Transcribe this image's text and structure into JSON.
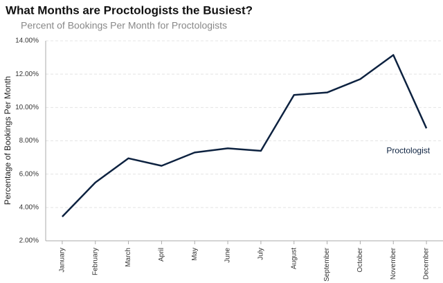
{
  "chart_data": {
    "type": "line",
    "title": "What Months are Proctologists the Busiest?",
    "subtitle": "Percent of Bookings Per Month for Proctologists",
    "y_label": "Percentage of Bookings Per Month",
    "categories": [
      "January",
      "February",
      "March",
      "April",
      "May",
      "June",
      "July",
      "August",
      "September",
      "October",
      "November",
      "December"
    ],
    "series": [
      {
        "name": "Proctologist",
        "color": "#0d2240",
        "values": [
          3.45,
          5.5,
          6.95,
          6.5,
          7.3,
          7.55,
          7.4,
          10.75,
          10.9,
          11.7,
          13.15,
          8.75
        ]
      }
    ],
    "ylim": [
      2,
      14
    ],
    "yticks": [
      {
        "value": 2,
        "label": "2.00%"
      },
      {
        "value": 4,
        "label": "4.00%"
      },
      {
        "value": 6,
        "label": "6.00%"
      },
      {
        "value": 8,
        "label": "8.00%"
      },
      {
        "value": 10,
        "label": "10.00%"
      },
      {
        "value": 12,
        "label": "12.00%"
      },
      {
        "value": 14,
        "label": "14.00%"
      }
    ],
    "grid": true
  }
}
